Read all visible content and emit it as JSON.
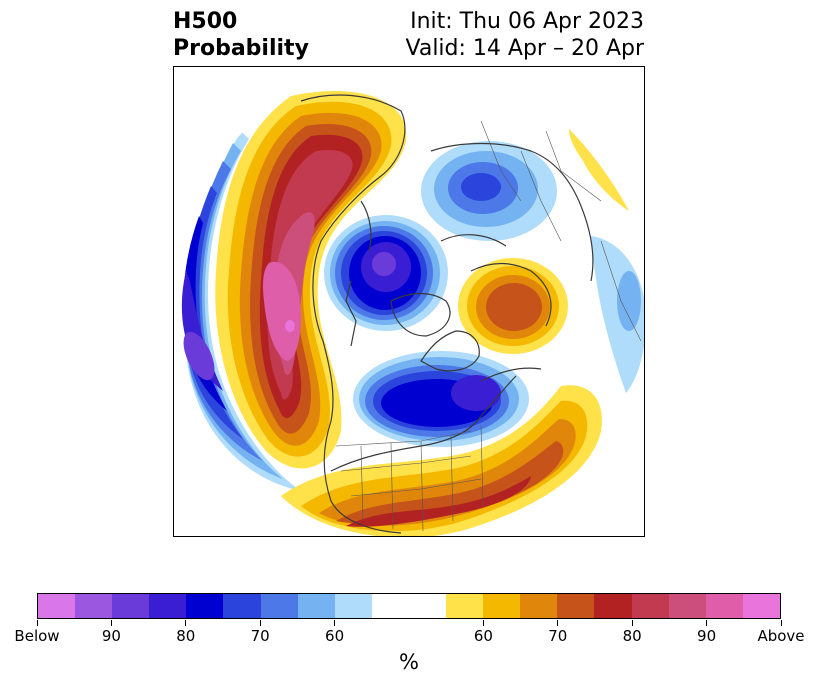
{
  "title": {
    "left_line1": "H500",
    "left_line2": "Probability",
    "right_line1": "Init: Thu 06 Apr 2023",
    "right_line2": "Valid: 14 Apr – 20 Apr"
  },
  "colorbar": {
    "unit": "%",
    "tick_labels": [
      "Below",
      "90",
      "80",
      "70",
      "60",
      "60",
      "70",
      "80",
      "90",
      "Above"
    ],
    "colors": [
      "#d977e9",
      "#9c57e0",
      "#6a3bd9",
      "#3a1ed3",
      "#0000d1",
      "#2a44dc",
      "#4c78e8",
      "#74b2f1",
      "#aedcfa",
      "#ffffff",
      "#ffffff",
      "#ffe14a",
      "#f4b800",
      "#e0870b",
      "#c5531a",
      "#b22222",
      "#c23a50",
      "#cc4f7b",
      "#de5eaa",
      "#e874dc"
    ]
  },
  "map": {
    "projection": "north-polar-stereographic",
    "below_color": "#0000d1",
    "above_color": "#b22222"
  }
}
